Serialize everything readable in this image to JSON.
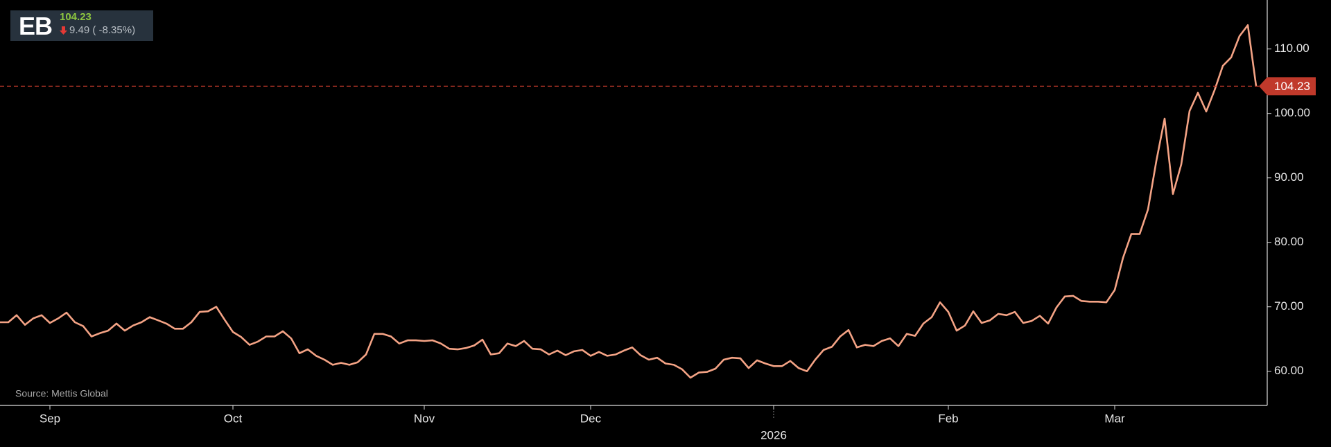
{
  "header": {
    "ticker": "EB",
    "price": "104.23",
    "change": "9.49",
    "change_pct": "( -8.35%)"
  },
  "chart_data": {
    "type": "line",
    "source": "Source: Mettis Global",
    "x": [
      null,
      null,
      null,
      null,
      null,
      null,
      "Sep",
      null,
      null,
      null,
      null,
      null,
      null,
      null,
      null,
      null,
      null,
      null,
      null,
      null,
      null,
      null,
      null,
      null,
      null,
      null,
      null,
      null,
      "Oct",
      null,
      null,
      null,
      null,
      null,
      null,
      null,
      null,
      null,
      null,
      null,
      null,
      null,
      null,
      null,
      null,
      null,
      null,
      null,
      null,
      null,
      null,
      "Nov",
      null,
      null,
      null,
      null,
      null,
      null,
      null,
      null,
      null,
      null,
      null,
      null,
      null,
      null,
      null,
      null,
      null,
      null,
      null,
      "Dec",
      null,
      null,
      null,
      null,
      null,
      null,
      null,
      null,
      null,
      null,
      null,
      null,
      null,
      null,
      null,
      null,
      null,
      null,
      null,
      null,
      null,
      "2026",
      null,
      null,
      null,
      null,
      null,
      null,
      null,
      null,
      null,
      null,
      null,
      null,
      null,
      null,
      null,
      null,
      null,
      null,
      null,
      null,
      "Feb",
      null,
      null,
      null,
      null,
      null,
      null,
      null,
      null,
      null,
      null,
      null,
      null,
      null,
      null,
      null,
      null,
      null,
      null,
      null,
      "Mar",
      null,
      null,
      null,
      null,
      null,
      null,
      null,
      null,
      null,
      null,
      null,
      null,
      null,
      null,
      null,
      null,
      null
    ],
    "series": [
      {
        "color": "#f4a385",
        "values": [
          67.6,
          67.6,
          68.7,
          67.2,
          68.2,
          68.7,
          67.5,
          68.2,
          69.1,
          67.6,
          67,
          65.4,
          65.9,
          66.3,
          67.4,
          66.3,
          67.1,
          67.6,
          68.4,
          67.9,
          67.4,
          66.6,
          66.6,
          67.6,
          69.2,
          69.3,
          70,
          68,
          66.1,
          65.3,
          64.1,
          64.6,
          65.4,
          65.4,
          66.2,
          65.1,
          62.8,
          63.4,
          62.4,
          61.8,
          61,
          61.3,
          61,
          61.4,
          62.6,
          65.8,
          65.8,
          65.4,
          64.3,
          64.8,
          64.8,
          64.7,
          64.8,
          64.3,
          63.5,
          63.4,
          63.6,
          64,
          64.9,
          62.6,
          62.8,
          64.3,
          63.9,
          64.7,
          63.5,
          63.4,
          62.6,
          63.2,
          62.5,
          63.1,
          63.3,
          62.4,
          63,
          62.4,
          62.6,
          63.2,
          63.7,
          62.5,
          61.8,
          62.1,
          61.2,
          61,
          60.3,
          59,
          59.8,
          59.9,
          60.4,
          61.8,
          62.1,
          62,
          60.5,
          61.7,
          61.2,
          60.8,
          60.8,
          61.6,
          60.5,
          60,
          61.8,
          63.3,
          63.8,
          65.4,
          66.4,
          63.7,
          64.1,
          63.9,
          64.7,
          65.1,
          63.9,
          65.8,
          65.5,
          67.4,
          68.4,
          70.7,
          69.2,
          66.3,
          67.1,
          69.3,
          67.5,
          67.9,
          68.9,
          68.7,
          69.2,
          67.5,
          67.8,
          68.6,
          67.4,
          69.9,
          71.6,
          71.7,
          70.9,
          70.8,
          70.8,
          70.7,
          72.6,
          77.6,
          81.3,
          81.3,
          85.1,
          92.6,
          99.2,
          87.5,
          92.1,
          100.4,
          103.2,
          100.3,
          103.6,
          107.4,
          108.7,
          112,
          113.7,
          104.23
        ]
      }
    ],
    "ylim": [
      54.7,
      117.6
    ],
    "yticks": [
      {
        "value": 60,
        "label": "60.00"
      },
      {
        "value": 70,
        "label": "70.00"
      },
      {
        "value": 80,
        "label": "80.00"
      },
      {
        "value": 90,
        "label": "90.00"
      },
      {
        "value": 100,
        "label": "100.00"
      },
      {
        "value": 110,
        "label": "110.00"
      }
    ],
    "last_price_line": {
      "color": "#c0392b"
    }
  }
}
